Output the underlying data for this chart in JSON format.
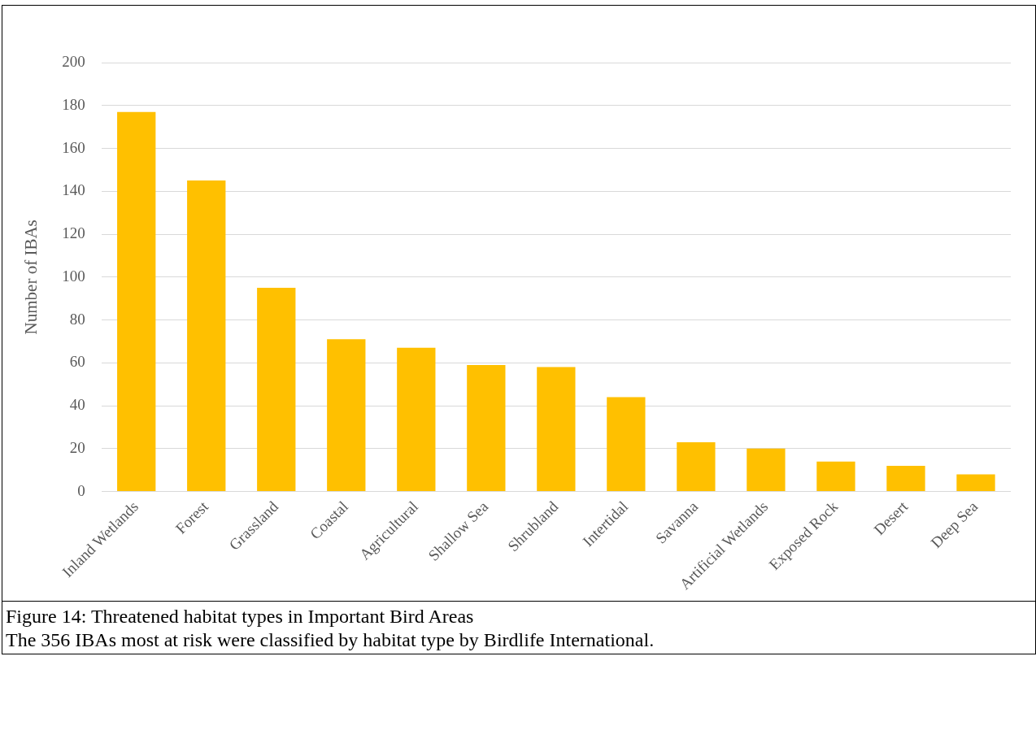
{
  "chart_data": {
    "type": "bar",
    "ylabel": "Number of IBAs",
    "categories": [
      "Inland Wetlands",
      "Forest",
      "Grassland",
      "Coastal",
      "Agricultural",
      "Shallow Sea",
      "Shrubland",
      "Intertidal",
      "Savanna",
      "Artificial Wetlands",
      "Exposed Rock",
      "Desert",
      "Deep Sea"
    ],
    "values": [
      177,
      145,
      95,
      71,
      67,
      59,
      58,
      44,
      23,
      20,
      14,
      12,
      8
    ],
    "color": "#ffc000",
    "ylim": [
      0,
      200
    ],
    "yticks": [
      0,
      20,
      40,
      60,
      80,
      100,
      120,
      140,
      160,
      180,
      200
    ],
    "grid": "y",
    "legend": false,
    "annotations": [
      "Figure 14: Threatened habitat types in Important Bird Areas",
      "The 356 IBAs most at risk were classified by habitat type by Birdlife International."
    ]
  }
}
